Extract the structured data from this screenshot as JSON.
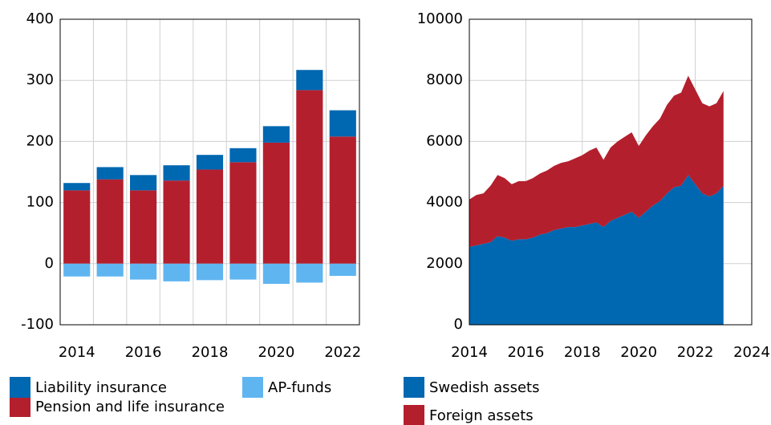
{
  "chart_data": [
    {
      "type": "bar",
      "stacked": true,
      "categories": [
        "2014",
        null,
        "2016",
        null,
        "2018",
        null,
        "2020",
        null,
        "2022"
      ],
      "series": [
        {
          "name": "Pension and life insurance",
          "color": "#b41f2d",
          "values": [
            120,
            138,
            120,
            136,
            154,
            166,
            198,
            284,
            208
          ]
        },
        {
          "name": "Liability insurance",
          "color": "#0067b1",
          "values": [
            12,
            20,
            25,
            25,
            24,
            23,
            27,
            33,
            43
          ]
        },
        {
          "name": "AP-funds",
          "color": "#5fb5f0",
          "values": [
            -21,
            -21,
            -26,
            -29,
            -27,
            -26,
            -33,
            -31,
            -20
          ]
        }
      ],
      "ylim": [
        -100,
        400
      ],
      "yticks": [
        -100,
        0,
        100,
        200,
        300,
        400
      ],
      "grid": true
    },
    {
      "type": "area",
      "stacked": true,
      "x": [
        2014,
        2014.25,
        2014.5,
        2014.75,
        2015,
        2015.25,
        2015.5,
        2015.75,
        2016,
        2016.25,
        2016.5,
        2016.75,
        2017,
        2017.25,
        2017.5,
        2017.75,
        2018,
        2018.25,
        2018.5,
        2018.75,
        2019,
        2019.25,
        2019.5,
        2019.75,
        2020,
        2020.25,
        2020.5,
        2020.75,
        2021,
        2021.25,
        2021.5,
        2021.75,
        2022,
        2022.25,
        2022.5,
        2022.75,
        2023
      ],
      "series": [
        {
          "name": "Swedish assets",
          "color": "#0067b1",
          "values": [
            2550,
            2600,
            2650,
            2700,
            2900,
            2850,
            2750,
            2800,
            2800,
            2850,
            2950,
            3000,
            3100,
            3150,
            3200,
            3200,
            3250,
            3300,
            3350,
            3200,
            3400,
            3500,
            3600,
            3700,
            3500,
            3700,
            3900,
            4050,
            4300,
            4500,
            4550,
            4900,
            4600,
            4300,
            4200,
            4300,
            4550
          ]
        },
        {
          "name": "Foreign assets",
          "color": "#b41f2d",
          "values": [
            1550,
            1650,
            1650,
            1850,
            2000,
            1950,
            1850,
            1900,
            1900,
            1950,
            2000,
            2050,
            2100,
            2150,
            2150,
            2250,
            2300,
            2400,
            2450,
            2200,
            2400,
            2500,
            2550,
            2600,
            2350,
            2500,
            2600,
            2700,
            2900,
            3000,
            3050,
            3250,
            3100,
            2950,
            2950,
            2950,
            3100
          ]
        }
      ],
      "xlim": [
        2014,
        2024
      ],
      "xticks": [
        2014,
        2016,
        2018,
        2020,
        2022,
        2024
      ],
      "ylim": [
        0,
        10000
      ],
      "yticks": [
        0,
        2000,
        4000,
        6000,
        8000,
        10000
      ],
      "grid": true
    }
  ]
}
